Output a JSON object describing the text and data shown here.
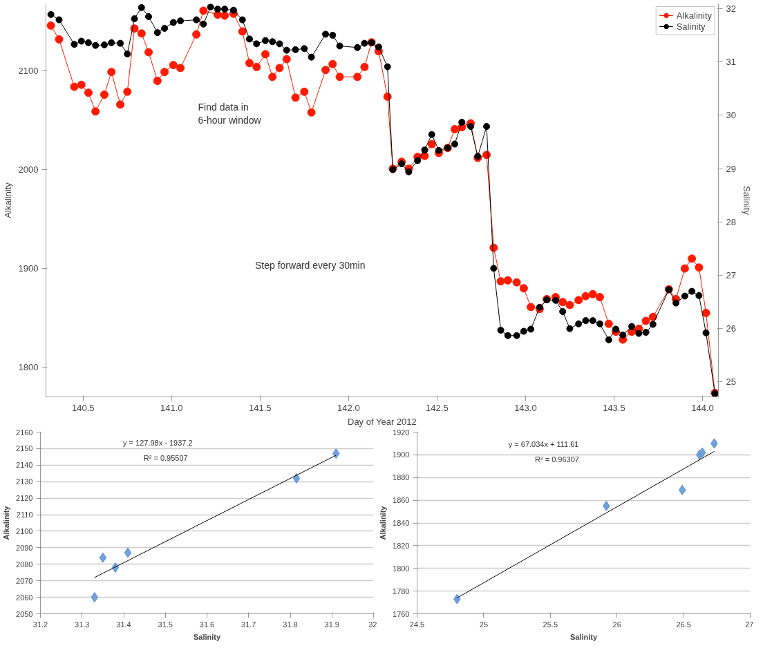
{
  "chart_data": [
    {
      "type": "line",
      "xlabel": "Day of Year 2012",
      "ylabel": "Alkalinity",
      "y2label": "Salinity",
      "marker": "circle",
      "line_style": "solid",
      "legend": "top right",
      "grid": false,
      "xlim": [
        140.29,
        144.09
      ],
      "ylim": [
        1770,
        2168
      ],
      "y2lim": [
        24.72,
        32.09
      ],
      "xticks": [
        140.5,
        {
          "value": 141,
          "label": "141.0"
        },
        141.5,
        {
          "value": 142,
          "label": "142.0"
        },
        142.5,
        {
          "value": 143,
          "label": "143.0"
        },
        143.5,
        {
          "value": 144,
          "label": "144.0"
        }
      ],
      "yticks": [
        1800,
        1900,
        2000,
        2100
      ],
      "y2ticks": [
        25,
        26,
        27,
        28,
        29,
        30,
        31,
        32
      ],
      "series": [
        {
          "name": "Alkalinity",
          "color": "#ff1a00",
          "x": [
            140.318,
            140.364,
            140.45,
            140.49,
            140.53,
            140.57,
            140.62,
            140.66,
            140.71,
            140.75,
            140.79,
            140.83,
            140.87,
            140.92,
            140.96,
            141.01,
            141.05,
            141.14,
            141.18,
            141.26,
            141.3,
            141.35,
            141.4,
            141.44,
            141.48,
            141.53,
            141.57,
            141.61,
            141.65,
            141.7,
            141.75,
            141.79,
            141.87,
            141.91,
            141.95,
            142.05,
            142.09,
            142.13,
            142.17,
            142.22,
            142.25,
            142.3,
            142.34,
            142.39,
            142.43,
            142.47,
            142.51,
            142.56,
            142.6,
            142.64,
            142.69,
            142.73,
            142.78,
            142.82,
            142.86,
            142.9,
            142.95,
            142.99,
            143.03,
            143.08,
            143.12,
            143.17,
            143.21,
            143.25,
            143.3,
            143.34,
            143.38,
            143.42,
            143.47,
            143.51,
            143.55,
            143.6,
            143.64,
            143.68,
            143.72,
            143.81,
            143.85,
            143.9,
            143.94,
            143.98,
            144.02,
            144.07
          ],
          "values": [
            2146,
            2132,
            2084,
            2086,
            2078,
            2059,
            2076,
            2099,
            2066,
            2079,
            2143,
            2138,
            2119,
            2090,
            2099,
            2106,
            2103,
            2137,
            2161,
            2157,
            2156,
            2158,
            2140,
            2108,
            2104,
            2117,
            2094,
            2103,
            2112,
            2073,
            2079,
            2058,
            2101,
            2107,
            2094,
            2094,
            2104,
            2129,
            2120,
            2074,
            2001,
            2008,
            2001,
            2013,
            2014,
            2026,
            2017,
            2022,
            2041,
            2043,
            2047,
            2012,
            2015,
            1921,
            1887,
            1888,
            1886,
            1880,
            1861,
            1859,
            1869,
            1871,
            1866,
            1863,
            1868,
            1872,
            1874,
            1871,
            1844,
            1836,
            1828,
            1836,
            1839,
            1847,
            1851,
            1879,
            1869,
            1900,
            1910,
            1901,
            1855,
            1774
          ]
        },
        {
          "name": "Salinity",
          "color": "#000000",
          "axis": "y2",
          "x": [
            140.318,
            140.364,
            140.45,
            140.49,
            140.53,
            140.57,
            140.62,
            140.66,
            140.71,
            140.75,
            140.79,
            140.83,
            140.87,
            140.92,
            140.96,
            141.01,
            141.05,
            141.14,
            141.18,
            141.22,
            141.26,
            141.3,
            141.35,
            141.4,
            141.44,
            141.48,
            141.53,
            141.57,
            141.61,
            141.65,
            141.7,
            141.75,
            141.79,
            141.87,
            141.91,
            141.95,
            142.05,
            142.09,
            142.13,
            142.17,
            142.22,
            142.25,
            142.3,
            142.34,
            142.39,
            142.43,
            142.47,
            142.51,
            142.56,
            142.6,
            142.64,
            142.69,
            142.73,
            142.78,
            142.82,
            142.86,
            142.9,
            142.95,
            142.99,
            143.03,
            143.08,
            143.12,
            143.17,
            143.21,
            143.25,
            143.3,
            143.34,
            143.38,
            143.42,
            143.47,
            143.51,
            143.55,
            143.6,
            143.64,
            143.68,
            143.72,
            143.81,
            143.85,
            143.9,
            143.94,
            143.98,
            144.02,
            144.07
          ],
          "values": [
            31.89,
            31.79,
            31.33,
            31.39,
            31.36,
            31.31,
            31.32,
            31.36,
            31.35,
            31.15,
            31.81,
            32.02,
            31.85,
            31.55,
            31.63,
            31.74,
            31.77,
            31.79,
            31.71,
            32.03,
            31.99,
            31.99,
            31.97,
            31.79,
            31.43,
            31.34,
            31.4,
            31.38,
            31.34,
            31.22,
            31.23,
            31.25,
            31.09,
            31.52,
            31.5,
            31.3,
            31.27,
            31.35,
            31.36,
            31.28,
            30.91,
            28.98,
            29.09,
            28.94,
            29.15,
            29.35,
            29.64,
            29.34,
            29.39,
            29.46,
            29.87,
            29.79,
            29.23,
            29.79,
            27.13,
            25.97,
            25.87,
            25.87,
            25.95,
            25.99,
            26.4,
            26.54,
            26.53,
            26.32,
            26.0,
            26.09,
            26.15,
            26.15,
            26.09,
            25.79,
            25.99,
            25.88,
            26.04,
            25.91,
            25.93,
            26.08,
            26.73,
            26.48,
            26.61,
            26.7,
            26.62,
            25.92,
            24.78
          ]
        }
      ],
      "annotations": [
        "Find data in\n6-hour window",
        "Step forward every 30min"
      ]
    },
    {
      "type": "scatter",
      "xlabel": "Salinity",
      "ylabel": "Alkalinity",
      "grid": "y",
      "xlim": [
        31.2,
        32
      ],
      "ylim": [
        2050,
        2160
      ],
      "xticks": [
        31.2,
        31.3,
        31.4,
        31.5,
        31.6,
        31.7,
        31.8,
        31.9,
        32
      ],
      "yticks": [
        2050,
        2060,
        2070,
        2080,
        2090,
        2100,
        2110,
        2120,
        2130,
        2140,
        2150,
        2160
      ],
      "series": [
        {
          "color": "#6fa3e0",
          "marker": "diamond",
          "x": [
            31.33,
            31.35,
            31.38,
            31.41,
            31.815,
            31.91
          ],
          "values": [
            2060,
            2084,
            2078,
            2087,
            2132,
            2147
          ]
        },
        {
          "type": "line",
          "color": "#000000",
          "x": [
            31.33,
            31.91
          ],
          "values": [
            2072,
            2146
          ]
        }
      ],
      "annotations": [
        "y = 127.98x - 1937.2",
        "R² = 0.95507"
      ]
    },
    {
      "type": "scatter",
      "xlabel": "Salinity",
      "ylabel": "Alkalinity",
      "grid": "y",
      "xlim": [
        24.5,
        27
      ],
      "ylim": [
        1760,
        1920
      ],
      "xticks": [
        24.5,
        25,
        25.5,
        26,
        26.5,
        27
      ],
      "yticks": [
        1760,
        1780,
        1800,
        1820,
        1840,
        1860,
        1880,
        1900,
        1920
      ],
      "series": [
        {
          "color": "#6fa3e0",
          "marker": "diamond",
          "x": [
            24.8,
            25.92,
            26.49,
            26.62,
            26.64,
            26.73
          ],
          "values": [
            1773,
            1855,
            1869,
            1900,
            1902,
            1910
          ]
        },
        {
          "type": "line",
          "color": "#000000",
          "x": [
            24.8,
            26.73
          ],
          "values": [
            1774,
            1903
          ]
        }
      ],
      "annotations": [
        "y = 67.034x + 111.61",
        "R² = 0.96307"
      ]
    }
  ]
}
